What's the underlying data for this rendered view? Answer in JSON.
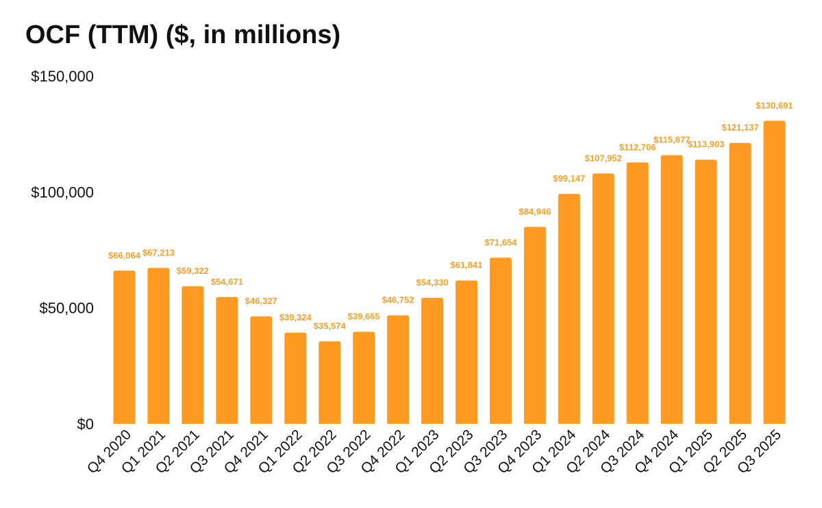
{
  "chart_data": {
    "type": "bar",
    "title": "OCF (TTM) ($, in millions)",
    "xlabel": "",
    "ylabel": "",
    "ylim": [
      0,
      150000
    ],
    "y_ticks": [
      0,
      50000,
      100000,
      150000
    ],
    "y_tick_labels": [
      "$0",
      "$50,000",
      "$100,000",
      "$150,000"
    ],
    "grid": false,
    "bar_color": "#FF9A22",
    "label_color": "#F5A028",
    "categories": [
      "Q4 2020",
      "Q1 2021",
      "Q2 2021",
      "Q3 2021",
      "Q4 2021",
      "Q1 2022",
      "Q2 2022",
      "Q3 2022",
      "Q4 2022",
      "Q1 2023",
      "Q2 2023",
      "Q3 2023",
      "Q4 2023",
      "Q1 2024",
      "Q2 2024",
      "Q3 2024",
      "Q4 2024",
      "Q1 2025",
      "Q2 2025",
      "Q3 2025"
    ],
    "values": [
      66064,
      67213,
      59322,
      54671,
      46327,
      39324,
      35574,
      39665,
      46752,
      54330,
      61841,
      71654,
      84946,
      99147,
      107952,
      112706,
      115877,
      113903,
      121137,
      130691
    ],
    "data_labels": [
      "$66,064",
      "$67,213",
      "$59,322",
      "$54,671",
      "$46,327",
      "$39,324",
      "$35,574",
      "$39,665",
      "$46,752",
      "$54,330",
      "$61,841",
      "$71,654",
      "$84,946",
      "$99,147",
      "$107,952",
      "$112,706",
      "$115,877",
      "$113,903",
      "$121,137",
      "$130,691"
    ]
  }
}
